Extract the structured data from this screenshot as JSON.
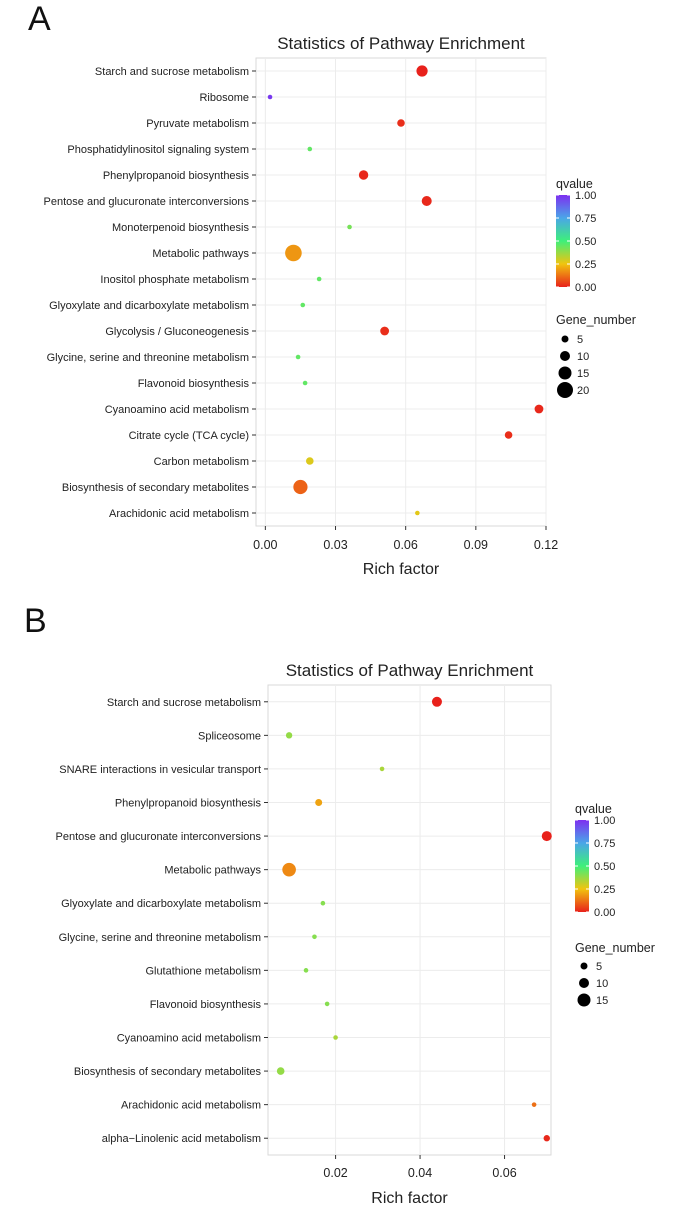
{
  "panels": {
    "A": {
      "letter": "A"
    },
    "B": {
      "letter": "B"
    }
  },
  "colors": {
    "plot_border": "#d9d9d9",
    "grid": "#ececec",
    "text": "#222222",
    "qvalue_scale": [
      "#e8211b",
      "#f1c40f",
      "#3ef07a",
      "#4aa6e8",
      "#7d2ff0"
    ]
  },
  "chart_data": [
    {
      "type": "scatter",
      "panel": "A",
      "title": "Statistics of Pathway Enrichment",
      "xlabel": "Rich factor",
      "ylabel": "",
      "xlim": [
        -0.004,
        0.12
      ],
      "xticks": [
        0.0,
        0.03,
        0.06,
        0.09,
        0.12
      ],
      "xtick_labels": [
        "0.00",
        "0.03",
        "0.06",
        "0.09",
        "0.12"
      ],
      "grid": true,
      "legend_placement": "right",
      "color_legend": {
        "title": "qvalue",
        "ticks": [
          "1.00",
          "0.75",
          "0.50",
          "0.25",
          "0.00"
        ],
        "tick_values": [
          1.0,
          0.75,
          0.5,
          0.25,
          0.0
        ]
      },
      "size_legend": {
        "title": "Gene_number",
        "labels": [
          "5",
          "10",
          "15",
          "20"
        ],
        "values": [
          5,
          10,
          15,
          20
        ]
      },
      "points": [
        {
          "pathway": "Starch and sucrose metabolism",
          "rich_factor": 0.067,
          "qvalue": 0.0,
          "gene_number": 12
        },
        {
          "pathway": "Ribosome",
          "rich_factor": 0.002,
          "qvalue": 0.98,
          "gene_number": 1
        },
        {
          "pathway": "Pyruvate metabolism",
          "rich_factor": 0.058,
          "qvalue": 0.02,
          "gene_number": 6
        },
        {
          "pathway": "Phosphatidylinositol signaling system",
          "rich_factor": 0.019,
          "qvalue": 0.45,
          "gene_number": 1
        },
        {
          "pathway": "Phenylpropanoid biosynthesis",
          "rich_factor": 0.042,
          "qvalue": 0.01,
          "gene_number": 9
        },
        {
          "pathway": "Pentose and glucuronate interconversions",
          "rich_factor": 0.069,
          "qvalue": 0.01,
          "gene_number": 10
        },
        {
          "pathway": "Monoterpenoid biosynthesis",
          "rich_factor": 0.036,
          "qvalue": 0.42,
          "gene_number": 1
        },
        {
          "pathway": "Metabolic pathways",
          "rich_factor": 0.012,
          "qvalue": 0.18,
          "gene_number": 21
        },
        {
          "pathway": "Inositol phosphate metabolism",
          "rich_factor": 0.023,
          "qvalue": 0.45,
          "gene_number": 1
        },
        {
          "pathway": "Glyoxylate and dicarboxylate metabolism",
          "rich_factor": 0.016,
          "qvalue": 0.45,
          "gene_number": 1
        },
        {
          "pathway": "Glycolysis / Gluconeogenesis",
          "rich_factor": 0.051,
          "qvalue": 0.02,
          "gene_number": 8
        },
        {
          "pathway": "Glycine, serine and threonine metabolism",
          "rich_factor": 0.014,
          "qvalue": 0.45,
          "gene_number": 1
        },
        {
          "pathway": "Flavonoid biosynthesis",
          "rich_factor": 0.017,
          "qvalue": 0.45,
          "gene_number": 1
        },
        {
          "pathway": "Cyanoamino acid metabolism",
          "rich_factor": 0.117,
          "qvalue": 0.01,
          "gene_number": 8
        },
        {
          "pathway": "Citrate cycle (TCA cycle)",
          "rich_factor": 0.104,
          "qvalue": 0.02,
          "gene_number": 6
        },
        {
          "pathway": "Carbon metabolism",
          "rich_factor": 0.019,
          "qvalue": 0.28,
          "gene_number": 6
        },
        {
          "pathway": "Biosynthesis of secondary metabolites",
          "rich_factor": 0.015,
          "qvalue": 0.1,
          "gene_number": 17
        },
        {
          "pathway": "Arachidonic acid metabolism",
          "rich_factor": 0.065,
          "qvalue": 0.27,
          "gene_number": 1
        }
      ]
    },
    {
      "type": "scatter",
      "panel": "B",
      "title": "Statistics of Pathway Enrichment",
      "xlabel": "Rich factor",
      "ylabel": "",
      "xlim": [
        0.004,
        0.071
      ],
      "xticks": [
        0.02,
        0.04,
        0.06
      ],
      "xtick_labels": [
        "0.02",
        "0.04",
        "0.06"
      ],
      "grid": true,
      "legend_placement": "right",
      "color_legend": {
        "title": "qvalue",
        "ticks": [
          "1.00",
          "0.75",
          "0.50",
          "0.25",
          "0.00"
        ],
        "tick_values": [
          1.0,
          0.75,
          0.5,
          0.25,
          0.0
        ]
      },
      "size_legend": {
        "title": "Gene_number",
        "labels": [
          "5",
          "10",
          "15"
        ],
        "values": [
          5,
          10,
          15
        ]
      },
      "points": [
        {
          "pathway": "Starch and sucrose metabolism",
          "rich_factor": 0.044,
          "qvalue": 0.0,
          "gene_number": 10
        },
        {
          "pathway": "Spliceosome",
          "rich_factor": 0.009,
          "qvalue": 0.38,
          "gene_number": 4
        },
        {
          "pathway": "SNARE interactions in vesicular transport",
          "rich_factor": 0.031,
          "qvalue": 0.35,
          "gene_number": 1
        },
        {
          "pathway": "Phenylpropanoid biosynthesis",
          "rich_factor": 0.016,
          "qvalue": 0.2,
          "gene_number": 5
        },
        {
          "pathway": "Pentose and glucuronate interconversions",
          "rich_factor": 0.07,
          "qvalue": 0.0,
          "gene_number": 10
        },
        {
          "pathway": "Metabolic pathways",
          "rich_factor": 0.009,
          "qvalue": 0.16,
          "gene_number": 16
        },
        {
          "pathway": "Glyoxylate and dicarboxylate metabolism",
          "rich_factor": 0.017,
          "qvalue": 0.4,
          "gene_number": 1
        },
        {
          "pathway": "Glycine, serine and threonine metabolism",
          "rich_factor": 0.015,
          "qvalue": 0.4,
          "gene_number": 1
        },
        {
          "pathway": "Glutathione metabolism",
          "rich_factor": 0.013,
          "qvalue": 0.4,
          "gene_number": 1
        },
        {
          "pathway": "Flavonoid biosynthesis",
          "rich_factor": 0.018,
          "qvalue": 0.4,
          "gene_number": 1
        },
        {
          "pathway": "Cyanoamino acid metabolism",
          "rich_factor": 0.02,
          "qvalue": 0.35,
          "gene_number": 1
        },
        {
          "pathway": "Biosynthesis of secondary metabolites",
          "rich_factor": 0.007,
          "qvalue": 0.38,
          "gene_number": 6
        },
        {
          "pathway": "Arachidonic acid metabolism",
          "rich_factor": 0.067,
          "qvalue": 0.12,
          "gene_number": 1
        },
        {
          "pathway": "alpha−Linolenic acid metabolism",
          "rich_factor": 0.07,
          "qvalue": 0.01,
          "gene_number": 4
        }
      ]
    }
  ]
}
